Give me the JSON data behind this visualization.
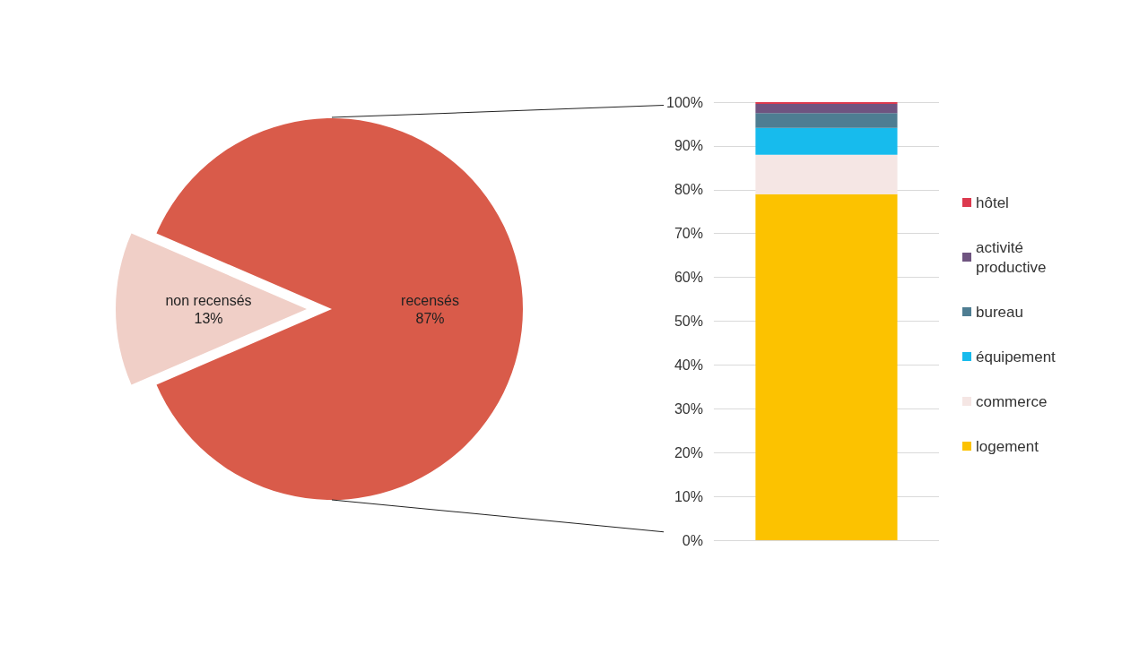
{
  "chart_data": [
    {
      "type": "pie",
      "categories": [
        "recensés",
        "non recensés"
      ],
      "values": [
        87,
        13
      ],
      "colors": [
        "#d95b4a",
        "#f0cfc7"
      ],
      "value_labels": [
        "87%",
        "13%"
      ]
    },
    {
      "type": "bar",
      "stacked": true,
      "categories": [
        null
      ],
      "ylim": [
        0,
        100
      ],
      "yticks": [
        {
          "value": 0,
          "label": "0%"
        },
        {
          "value": 10,
          "label": "10%"
        },
        {
          "value": 20,
          "label": "20%"
        },
        {
          "value": 30,
          "label": "30%"
        },
        {
          "value": 40,
          "label": "40%"
        },
        {
          "value": 50,
          "label": "50%"
        },
        {
          "value": 60,
          "label": "60%"
        },
        {
          "value": 70,
          "label": "70%"
        },
        {
          "value": 80,
          "label": "80%"
        },
        {
          "value": 90,
          "label": "90%"
        },
        {
          "value": 100,
          "label": "100%"
        }
      ],
      "grid": "y",
      "legend": "right",
      "tick_labels": "y",
      "series": [
        {
          "name": "logement",
          "color": "#fcc200",
          "values": [
            79
          ]
        },
        {
          "name": "commerce",
          "color": "#f5e6e4",
          "values": [
            9
          ]
        },
        {
          "name": "équipement",
          "color": "#17bbed",
          "values": [
            6.1
          ]
        },
        {
          "name": "bureau",
          "color": "#4e7d92",
          "values": [
            3.4
          ]
        },
        {
          "name": "activité productive",
          "color": "#6f5480",
          "values": [
            2.1
          ]
        },
        {
          "name": "hôtel",
          "color": "#dc3a4f",
          "values": [
            0.4
          ]
        }
      ]
    }
  ]
}
